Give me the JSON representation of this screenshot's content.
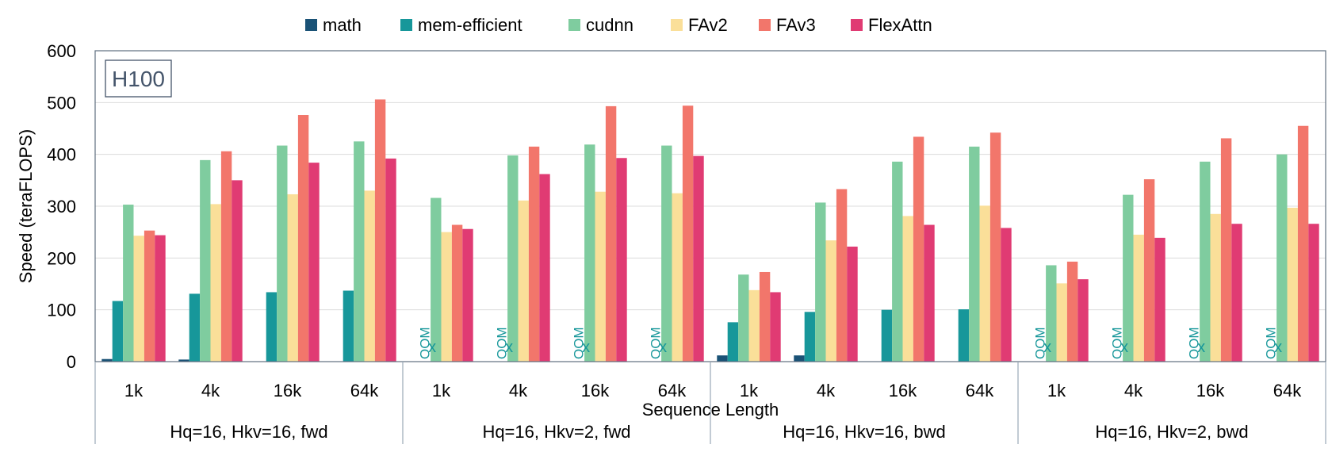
{
  "chart_data": {
    "type": "bar",
    "badge": "H100",
    "ylabel": "Speed (teraFLOPS)",
    "xlabel": "Sequence Length",
    "ylim": [
      0,
      600
    ],
    "yticks": [
      0,
      100,
      200,
      300,
      400,
      500,
      600
    ],
    "grid": true,
    "legend_position": "top",
    "na_label": "OOM",
    "x_mark": "x",
    "groups": [
      {
        "label": "Hq=16, Hkv=16, fwd",
        "categories": [
          "1k",
          "4k",
          "16k",
          "64k"
        ]
      },
      {
        "label": "Hq=16, Hkv=2, fwd",
        "categories": [
          "1k",
          "4k",
          "16k",
          "64k"
        ]
      },
      {
        "label": "Hq=16, Hkv=16, bwd",
        "categories": [
          "1k",
          "4k",
          "16k",
          "64k"
        ]
      },
      {
        "label": "Hq=16, Hkv=2, bwd",
        "categories": [
          "1k",
          "4k",
          "16k",
          "64k"
        ]
      }
    ],
    "series": [
      {
        "name": "math",
        "color": "#1a5276",
        "values": [
          5,
          4,
          null,
          null,
          null,
          null,
          null,
          null,
          12,
          12,
          null,
          null,
          null,
          null,
          null,
          null
        ]
      },
      {
        "name": "mem-efficient",
        "color": "#17979a",
        "values": [
          117,
          131,
          134,
          137,
          null,
          null,
          null,
          null,
          76,
          96,
          100,
          101,
          null,
          null,
          null,
          null
        ]
      },
      {
        "name": "cudnn",
        "color": "#7fcc9f",
        "values": [
          303,
          389,
          417,
          425,
          316,
          398,
          419,
          417,
          168,
          307,
          386,
          415,
          186,
          322,
          386,
          400
        ]
      },
      {
        "name": "FAv2",
        "color": "#fadf99",
        "values": [
          243,
          304,
          323,
          330,
          250,
          311,
          328,
          325,
          138,
          234,
          281,
          301,
          151,
          245,
          285,
          297
        ]
      },
      {
        "name": "FAv3",
        "color": "#f2766b",
        "values": [
          253,
          406,
          476,
          506,
          264,
          415,
          493,
          494,
          173,
          333,
          434,
          442,
          193,
          352,
          431,
          455
        ]
      },
      {
        "name": "FlexAttn",
        "color": "#e03b73",
        "values": [
          244,
          350,
          384,
          392,
          256,
          362,
          393,
          397,
          134,
          222,
          264,
          258,
          159,
          239,
          266,
          266
        ]
      }
    ]
  }
}
